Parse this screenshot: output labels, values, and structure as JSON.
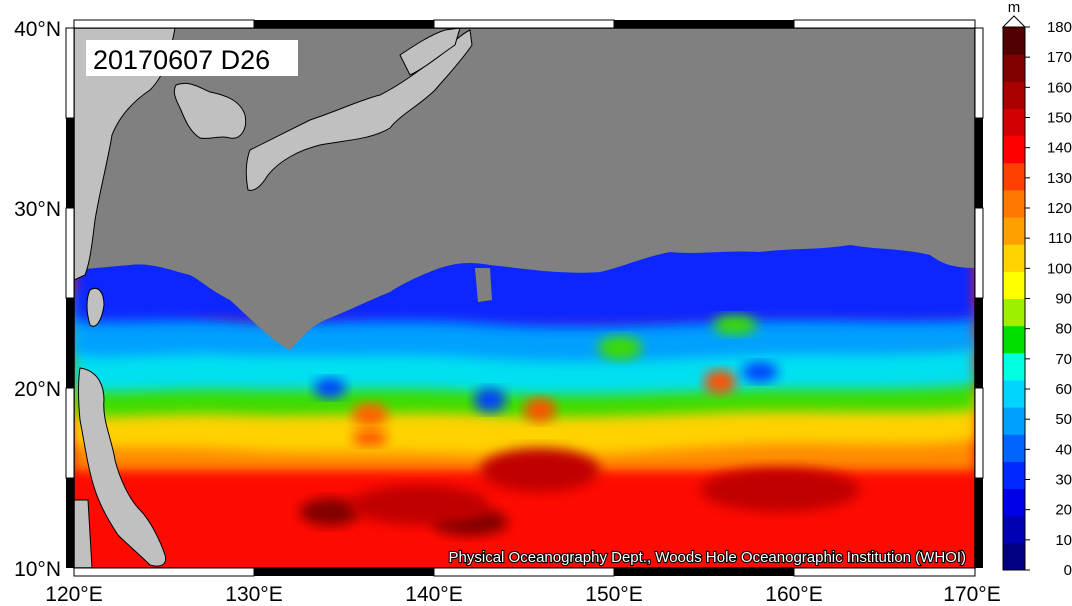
{
  "map": {
    "date_label": "20170607 D26",
    "credit": "Physical Oceanography Dept., Woods Hole Oceanographic Institution (WHOI)",
    "lon_ticks": [
      "120°E",
      "130°E",
      "140°E",
      "150°E",
      "160°E",
      "170°E"
    ],
    "lat_ticks": [
      "40°N",
      "30°N",
      "20°N",
      "10°N"
    ],
    "lon_range": [
      120,
      170
    ],
    "lat_range": [
      10,
      40
    ],
    "land_color": "#808080",
    "land_color_light": "#c0c0c0"
  },
  "colorbar": {
    "unit": "m",
    "ticks": [
      "180",
      "170",
      "160",
      "150",
      "140",
      "130",
      "120",
      "110",
      "100",
      "90",
      "80",
      "70",
      "60",
      "50",
      "40",
      "30",
      "20",
      "10",
      "0"
    ],
    "colors": [
      "#000080",
      "#0000b4",
      "#0000e6",
      "#0028ff",
      "#0064ff",
      "#00a0ff",
      "#00d4ff",
      "#00ffe0",
      "#00e000",
      "#9cf000",
      "#ffff00",
      "#ffd200",
      "#ffa000",
      "#ff7800",
      "#ff4000",
      "#ff0000",
      "#d20000",
      "#aa0000",
      "#800000",
      "#500000"
    ]
  }
}
